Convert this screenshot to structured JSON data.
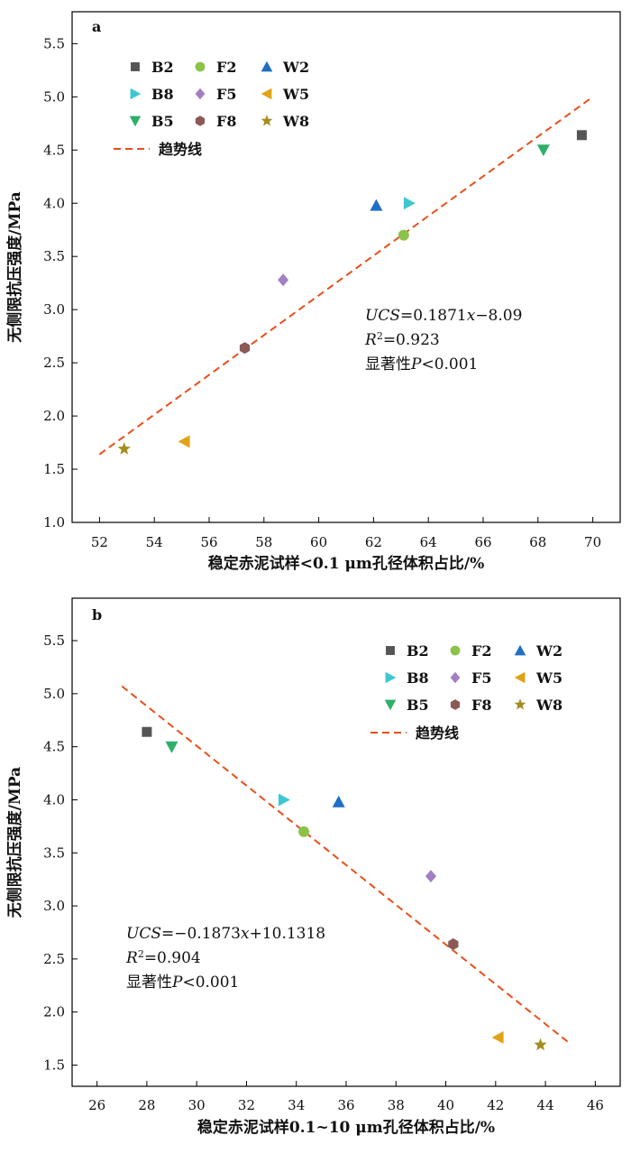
{
  "chart_data": [
    {
      "type": "scatter",
      "panel_label": "a",
      "xlabel": "稳定赤泥试样<0.1 μm孔径体积占比/%",
      "ylabel": "无侧限抗压强度/MPa",
      "xlim": [
        51,
        71
      ],
      "ylim": [
        1.0,
        5.8
      ],
      "xticks": [
        52,
        54,
        56,
        58,
        60,
        62,
        64,
        66,
        68,
        70
      ],
      "yticks": [
        1.0,
        1.5,
        2.0,
        2.5,
        3.0,
        3.5,
        4.0,
        4.5,
        5.0,
        5.5
      ],
      "grid": false,
      "legend_position": "top-left",
      "series": [
        {
          "name": "B2",
          "marker": "square",
          "color": "#555555",
          "points": [
            [
              69.6,
              4.64
            ]
          ]
        },
        {
          "name": "F2",
          "marker": "circle",
          "color": "#8bc34a",
          "points": [
            [
              63.1,
              3.7
            ]
          ]
        },
        {
          "name": "W2",
          "marker": "triangle-up",
          "color": "#1f6fc5",
          "points": [
            [
              62.1,
              3.98
            ]
          ]
        },
        {
          "name": "B8",
          "marker": "triangle-right",
          "color": "#3ec7d3",
          "points": [
            [
              63.3,
              4.0
            ]
          ]
        },
        {
          "name": "F5",
          "marker": "diamond",
          "color": "#a27fc4",
          "points": [
            [
              58.7,
              3.28
            ]
          ]
        },
        {
          "name": "W5",
          "marker": "triangle-left",
          "color": "#e0a316",
          "points": [
            [
              55.1,
              1.76
            ]
          ]
        },
        {
          "name": "B5",
          "marker": "triangle-down",
          "color": "#2eaf6a",
          "points": [
            [
              68.2,
              4.5
            ]
          ]
        },
        {
          "name": "F8",
          "marker": "hexagon",
          "color": "#8b5a55",
          "points": [
            [
              57.3,
              2.64
            ]
          ]
        },
        {
          "name": "W8",
          "marker": "star",
          "color": "#a48d1c",
          "points": [
            [
              52.9,
              1.69
            ]
          ]
        }
      ],
      "trendline": {
        "name": "趋势线",
        "x": [
          52,
          70
        ],
        "y": [
          1.64,
          5.0
        ],
        "color": "#e94e1b"
      },
      "annotation": {
        "eq_lhs": "UCS",
        "eq_rhs": "=0.1871",
        "eq_var": "x",
        "eq_tail": "−8.09",
        "r2_base": "R",
        "r2_sup": "2",
        "r2_val": "=0.923",
        "sig_text": "显著性",
        "sig_var": "P",
        "sig_tail": "<0.001"
      }
    },
    {
      "type": "scatter",
      "panel_label": "b",
      "xlabel": "稳定赤泥试样0.1~10 μm孔径体积占比/%",
      "ylabel": "无侧限抗压强度/MPa",
      "xlim": [
        25,
        47
      ],
      "ylim": [
        1.3,
        5.9
      ],
      "xticks": [
        26,
        28,
        30,
        32,
        34,
        36,
        38,
        40,
        42,
        44,
        46
      ],
      "yticks": [
        1.5,
        2.0,
        2.5,
        3.0,
        3.5,
        4.0,
        4.5,
        5.0,
        5.5
      ],
      "grid": false,
      "legend_position": "top-right",
      "series": [
        {
          "name": "B2",
          "marker": "square",
          "color": "#555555",
          "points": [
            [
              28.0,
              4.64
            ]
          ]
        },
        {
          "name": "F2",
          "marker": "circle",
          "color": "#8bc34a",
          "points": [
            [
              34.3,
              3.7
            ]
          ]
        },
        {
          "name": "W2",
          "marker": "triangle-up",
          "color": "#1f6fc5",
          "points": [
            [
              35.7,
              3.98
            ]
          ]
        },
        {
          "name": "B8",
          "marker": "triangle-right",
          "color": "#3ec7d3",
          "points": [
            [
              33.5,
              4.0
            ]
          ]
        },
        {
          "name": "F5",
          "marker": "diamond",
          "color": "#a27fc4",
          "points": [
            [
              39.4,
              3.28
            ]
          ]
        },
        {
          "name": "W5",
          "marker": "triangle-left",
          "color": "#e0a316",
          "points": [
            [
              42.1,
              1.76
            ]
          ]
        },
        {
          "name": "B5",
          "marker": "triangle-down",
          "color": "#2eaf6a",
          "points": [
            [
              29.0,
              4.5
            ]
          ]
        },
        {
          "name": "F8",
          "marker": "hexagon",
          "color": "#8b5a55",
          "points": [
            [
              40.3,
              2.64
            ]
          ]
        },
        {
          "name": "W8",
          "marker": "star",
          "color": "#a48d1c",
          "points": [
            [
              43.8,
              1.69
            ]
          ]
        }
      ],
      "trendline": {
        "name": "趋势线",
        "x": [
          27,
          45
        ],
        "y": [
          5.07,
          1.7
        ],
        "color": "#e94e1b"
      },
      "annotation": {
        "eq_lhs": "UCS",
        "eq_rhs": "=−0.1873",
        "eq_var": "x",
        "eq_tail": "+10.1318",
        "r2_base": "R",
        "r2_sup": "2",
        "r2_val": "=0.904",
        "sig_text": "显著性",
        "sig_var": "P",
        "sig_tail": "<0.001"
      }
    }
  ]
}
